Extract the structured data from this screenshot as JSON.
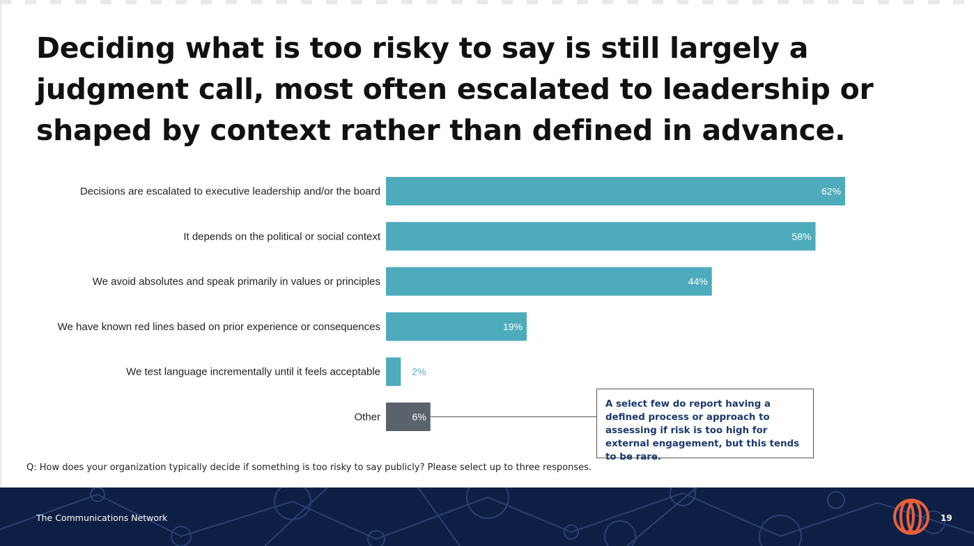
{
  "slide": {
    "title": "Deciding what is too risky to say is still largely a judgment call, most often escalated to leadership or shaped by context rather than defined in advance.",
    "question": "Q: How does your organization typically decide if something is too risky to say publicly? Please select up to three responses.",
    "callout": "A select few do report having a defined process or approach to assessing if risk is too high for external engagement, but this tends to be rare.",
    "footer": {
      "org": "The Communications Network",
      "page_number": "19"
    }
  },
  "chart_data": {
    "type": "bar",
    "orientation": "horizontal",
    "title": "",
    "xlabel": "",
    "ylabel": "",
    "xlim": [
      0,
      100
    ],
    "grid": false,
    "categories": [
      "Decisions are escalated to executive leadership and/or the board",
      "It depends on the political or social context",
      "We avoid absolutes and speak primarily in values or principles",
      "We have known red lines based on prior experience or consequences",
      "We test language incrementally until it feels acceptable",
      "Other"
    ],
    "values": [
      62,
      58,
      44,
      19,
      2,
      6
    ],
    "value_labels": [
      "62%",
      "58%",
      "44%",
      "19%",
      "2%",
      "6%"
    ],
    "colors": [
      "#4eabbb",
      "#4eabbb",
      "#4eabbb",
      "#4eabbb",
      "#4eabbb",
      "#5a626b"
    ]
  },
  "colors": {
    "bar": "#4eabbb",
    "other_bar": "#5a626b",
    "footer": "#0d1f45",
    "callout_text": "#1b3a6b",
    "logo": "#e8603c"
  }
}
